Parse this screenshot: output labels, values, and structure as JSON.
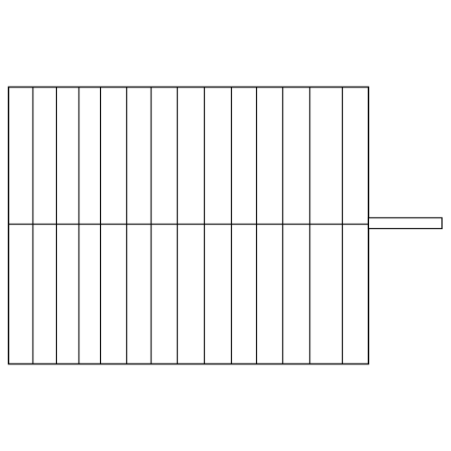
{
  "diagram": {
    "stroke_color": "#000000",
    "background_color": "#ffffff",
    "grid": {
      "rows": 2,
      "columns": 14
    },
    "handle": {
      "side": "right",
      "vertical_alignment": "middle"
    }
  }
}
